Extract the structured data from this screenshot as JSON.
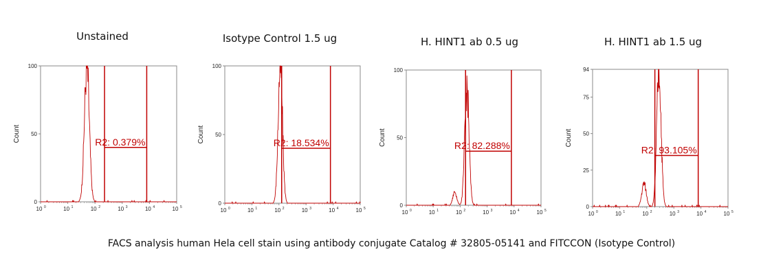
{
  "chart_data": [
    {
      "type": "area",
      "title": "Unstained",
      "ylabel": "Count",
      "ylim": [
        0,
        100
      ],
      "yticks": [
        "0",
        "50",
        "100"
      ],
      "xlog": true,
      "xticks": [
        "10",
        "10",
        "10",
        "10",
        "10",
        "10"
      ],
      "peak_center_decade": 1.7,
      "peak_width_decade": 0.09,
      "peak_height": 100,
      "gate": {
        "label": "R2: 0.379%",
        "x_start_decade": 2.35,
        "x_end_decade": 3.9,
        "y_value": 40
      }
    },
    {
      "type": "area",
      "title": "Isotype Control 1.5 ug",
      "ylabel": "Count",
      "ylim": [
        0,
        100
      ],
      "yticks": [
        "0",
        "50",
        "100"
      ],
      "xlog": true,
      "xticks": [
        "10",
        "10",
        "10",
        "10",
        "10",
        "10"
      ],
      "peak_center_decade": 2.05,
      "peak_width_decade": 0.08,
      "peak_height": 100,
      "gate": {
        "label": "R2: 18.534%",
        "x_start_decade": 2.1,
        "x_end_decade": 3.9,
        "y_value": 40
      }
    },
    {
      "type": "area",
      "title": "H. HINT1 ab 0.5 ug",
      "ylabel": "Count",
      "ylim": [
        0,
        100
      ],
      "yticks": [
        "0",
        "50",
        "100"
      ],
      "xlog": true,
      "xticks": [
        "10",
        "10",
        "10",
        "10",
        "10",
        "10"
      ],
      "peak_center_decade": 2.25,
      "peak_width_decade": 0.08,
      "peak_height": 86,
      "gate": {
        "label": "R2: 82.288%",
        "x_start_decade": 2.2,
        "x_end_decade": 3.9,
        "y_value": 40
      }
    },
    {
      "type": "area",
      "title": "H. HINT1 ab 1.5 ug",
      "ylabel": "Count",
      "ylim": [
        0,
        94
      ],
      "yticks": [
        "0",
        "25",
        "50",
        "75",
        "94"
      ],
      "xlog": true,
      "xticks": [
        "10",
        "10",
        "10",
        "10",
        "10",
        "10"
      ],
      "peak_center_decade": 2.45,
      "peak_width_decade": 0.08,
      "peak_height": 94,
      "gate": {
        "label": "R2: 93.105%",
        "x_start_decade": 2.3,
        "x_end_decade": 3.9,
        "y_value": 35
      }
    }
  ],
  "caption": "FACS analysis human Hela cell stain using antibody conjugate Catalog # 32805-05141 and FITCCON (Isotype Control)",
  "colors": {
    "series": "#c00000",
    "axis": "#888888"
  }
}
